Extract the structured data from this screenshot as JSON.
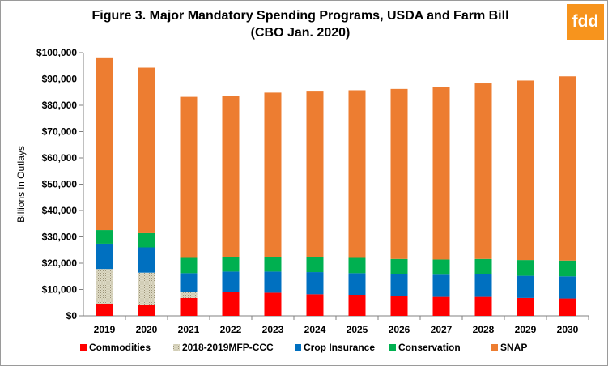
{
  "chart_data": {
    "type": "bar",
    "stacked": true,
    "title": "Figure 3. Major Mandatory  Spending Programs, USDA and Farm Bill",
    "subtitle": "(CBO Jan. 2020)",
    "ylabel": "Billions in Outlays",
    "xlabel": "",
    "ylim": [
      0,
      100000
    ],
    "ytick_step": 10000,
    "ytick_labels": [
      "$0",
      "$10,000",
      "$20,000",
      "$30,000",
      "$40,000",
      "$50,000",
      "$60,000",
      "$70,000",
      "$80,000",
      "$90,000",
      "$100,000"
    ],
    "grid": false,
    "legend_position": "bottom",
    "categories": [
      "2019",
      "2020",
      "2021",
      "2022",
      "2023",
      "2024",
      "2025",
      "2026",
      "2027",
      "2028",
      "2029",
      "2030"
    ],
    "series": [
      {
        "name": "Commodities",
        "color": "#ff0000",
        "values": [
          4400,
          4000,
          6800,
          9000,
          8800,
          8200,
          8000,
          7600,
          7200,
          7200,
          6800,
          6600
        ]
      },
      {
        "name": "2018-2019MFP-CCC",
        "color": "#ddd9c4",
        "pattern": "dotted",
        "values": [
          13400,
          12400,
          2400,
          0,
          0,
          0,
          0,
          0,
          0,
          0,
          0,
          0
        ]
      },
      {
        "name": "Crop Insurance",
        "color": "#0070c0",
        "values": [
          9600,
          9600,
          7000,
          7800,
          8000,
          8400,
          8200,
          8200,
          8400,
          8600,
          8400,
          8400
        ]
      },
      {
        "name": "Conservation",
        "color": "#00b050",
        "values": [
          5200,
          5400,
          5800,
          5600,
          5600,
          5800,
          5800,
          5800,
          5800,
          5800,
          6000,
          6000
        ]
      },
      {
        "name": "SNAP",
        "color": "#ed7d31",
        "values": [
          65300,
          62900,
          61200,
          61200,
          62400,
          62800,
          63700,
          64600,
          65500,
          66700,
          68200,
          70000
        ]
      }
    ]
  },
  "logo": {
    "text": "fdd",
    "color": "#f7941d"
  }
}
